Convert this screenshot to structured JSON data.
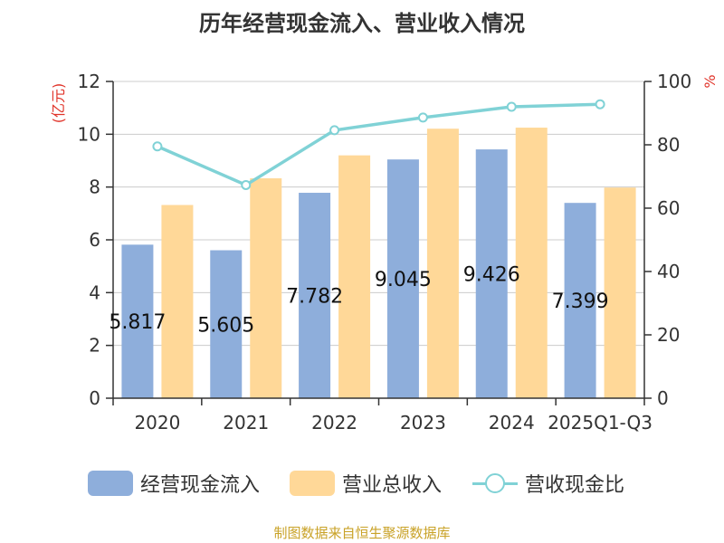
{
  "title": "历年经营现金流入、营业收入情况",
  "colors": {
    "bar1": "#8eaedb",
    "bar2": "#ffd898",
    "line": "#80d2d6",
    "yunit_left": "#e0342a",
    "yunit_right": "#e0342a",
    "axis": "#333333",
    "grid": "#cccccc",
    "source": "#c9a227"
  },
  "legend": {
    "bar1": "经营现金流入",
    "bar2": "营业总收入",
    "line": "营收现金比"
  },
  "source": "制图数据来自恒生聚源数据库",
  "chart_data": {
    "type": "bar",
    "categories": [
      "2020",
      "2021",
      "2022",
      "2023",
      "2024",
      "2025Q1-Q3"
    ],
    "y_left": {
      "unit": "(亿元)",
      "range": [
        0,
        12
      ],
      "ticks": [
        0,
        2,
        4,
        6,
        8,
        10,
        12
      ]
    },
    "y_right": {
      "unit": "%",
      "range": [
        0,
        100
      ],
      "ticks": [
        0,
        20,
        40,
        60,
        80,
        100
      ]
    },
    "grid": true,
    "legend_position": "bottom",
    "series": [
      {
        "name": "经营现金流入",
        "type": "bar",
        "axis": "left",
        "values": [
          5.817,
          5.605,
          7.782,
          9.045,
          9.426,
          7.399
        ],
        "labels": [
          "5.817",
          "5.605",
          "7.782",
          "9.045",
          "9.426",
          "7.399"
        ]
      },
      {
        "name": "营业总收入",
        "type": "bar",
        "axis": "left",
        "values": [
          7.32,
          8.33,
          9.2,
          10.21,
          10.25,
          7.98
        ]
      },
      {
        "name": "营收现金比",
        "type": "line",
        "axis": "right",
        "values": [
          79.5,
          67.3,
          84.6,
          88.6,
          92.0,
          92.8
        ]
      }
    ]
  }
}
